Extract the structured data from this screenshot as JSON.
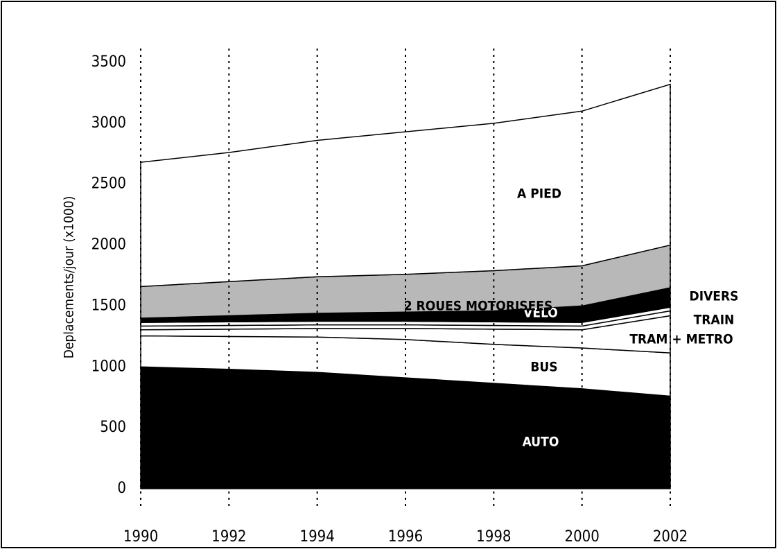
{
  "chart_data": {
    "type": "stacked_area",
    "y_label": "Deplacements/jour (x1000)",
    "x": [
      1990,
      1992,
      1994,
      1996,
      1998,
      2000,
      2002
    ],
    "xlim": [
      1990,
      2002
    ],
    "xticks": [
      1990,
      1992,
      1994,
      1996,
      1998,
      2000,
      2002
    ],
    "ylim": [
      0,
      3500
    ],
    "yticks": [
      0,
      500,
      1000,
      1500,
      2000,
      2500,
      3000,
      3500
    ],
    "grid": true,
    "series": [
      {
        "name": "AUTO",
        "color": "#000000",
        "values": [
          1000,
          980,
          955,
          910,
          865,
          820,
          760
        ]
      },
      {
        "name": "BUS",
        "color": "#ffffff",
        "values": [
          255,
          270,
          290,
          315,
          320,
          335,
          355
        ]
      },
      {
        "name": "TRAM + METRO",
        "color": "#ffffff",
        "values": [
          50,
          60,
          70,
          90,
          125,
          150,
          305
        ]
      },
      {
        "name": "TRAIN",
        "color": "#ffffff",
        "values": [
          30,
          30,
          30,
          30,
          30,
          30,
          40
        ]
      },
      {
        "name": "DIVERS",
        "color": "#ffffff",
        "values": [
          30,
          30,
          30,
          30,
          30,
          30,
          30
        ]
      },
      {
        "name": "VELO",
        "color": "#000000",
        "values": [
          35,
          50,
          65,
          75,
          90,
          135,
          160
        ]
      },
      {
        "name": "2 ROUES MOTORISEES",
        "color": "#b8b8b8",
        "values": [
          260,
          280,
          300,
          310,
          330,
          330,
          350
        ]
      },
      {
        "name": "A PIED",
        "color": "#ffffff",
        "values": [
          1020,
          1060,
          1120,
          1170,
          1210,
          1270,
          1320
        ]
      }
    ]
  }
}
